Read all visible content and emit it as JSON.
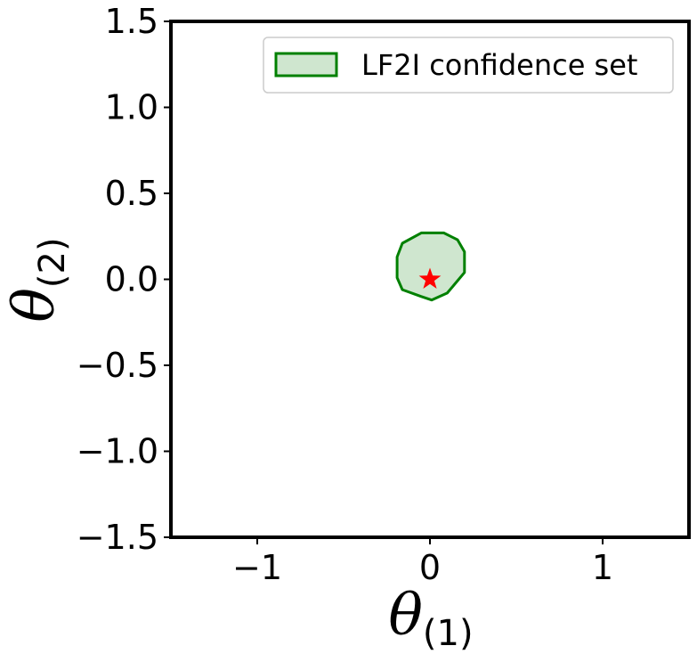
{
  "chart_data": {
    "type": "area",
    "xlabel": {
      "symbol": "θ",
      "subscript": "(1)"
    },
    "ylabel": {
      "symbol": "θ",
      "subscript": "(2)"
    },
    "xlim": [
      -1.5,
      1.5
    ],
    "ylim": [
      -1.5,
      1.5
    ],
    "xticks": [
      -1,
      0,
      1
    ],
    "xtick_labels": [
      "−1",
      "0",
      "1"
    ],
    "yticks": [
      1.5,
      1.0,
      0.5,
      0.0,
      -0.5,
      -1.0,
      -1.5
    ],
    "ytick_labels": [
      "1.5",
      "1.0",
      "0.5",
      "0.0",
      "−0.5",
      "−1.0",
      "−1.5"
    ],
    "grid": false,
    "legend": {
      "position": "top-right",
      "entries": [
        "LF2I confidence set"
      ]
    },
    "series": [
      {
        "name": "LF2I confidence set",
        "kind": "filled-polygon",
        "edge_color": "#008000",
        "fill_color": "#cfe6cf",
        "points": [
          [
            -0.16,
            0.21
          ],
          [
            -0.05,
            0.27
          ],
          [
            0.08,
            0.27
          ],
          [
            0.16,
            0.23
          ],
          [
            0.2,
            0.16
          ],
          [
            0.2,
            0.04
          ],
          [
            0.1,
            -0.08
          ],
          [
            0.01,
            -0.12
          ],
          [
            -0.05,
            -0.1
          ],
          [
            -0.16,
            -0.06
          ],
          [
            -0.19,
            0.01
          ],
          [
            -0.19,
            0.13
          ]
        ]
      },
      {
        "name": "",
        "kind": "marker",
        "marker": "star",
        "color": "#ff0000",
        "points": [
          [
            0.0,
            0.0
          ]
        ]
      }
    ]
  }
}
